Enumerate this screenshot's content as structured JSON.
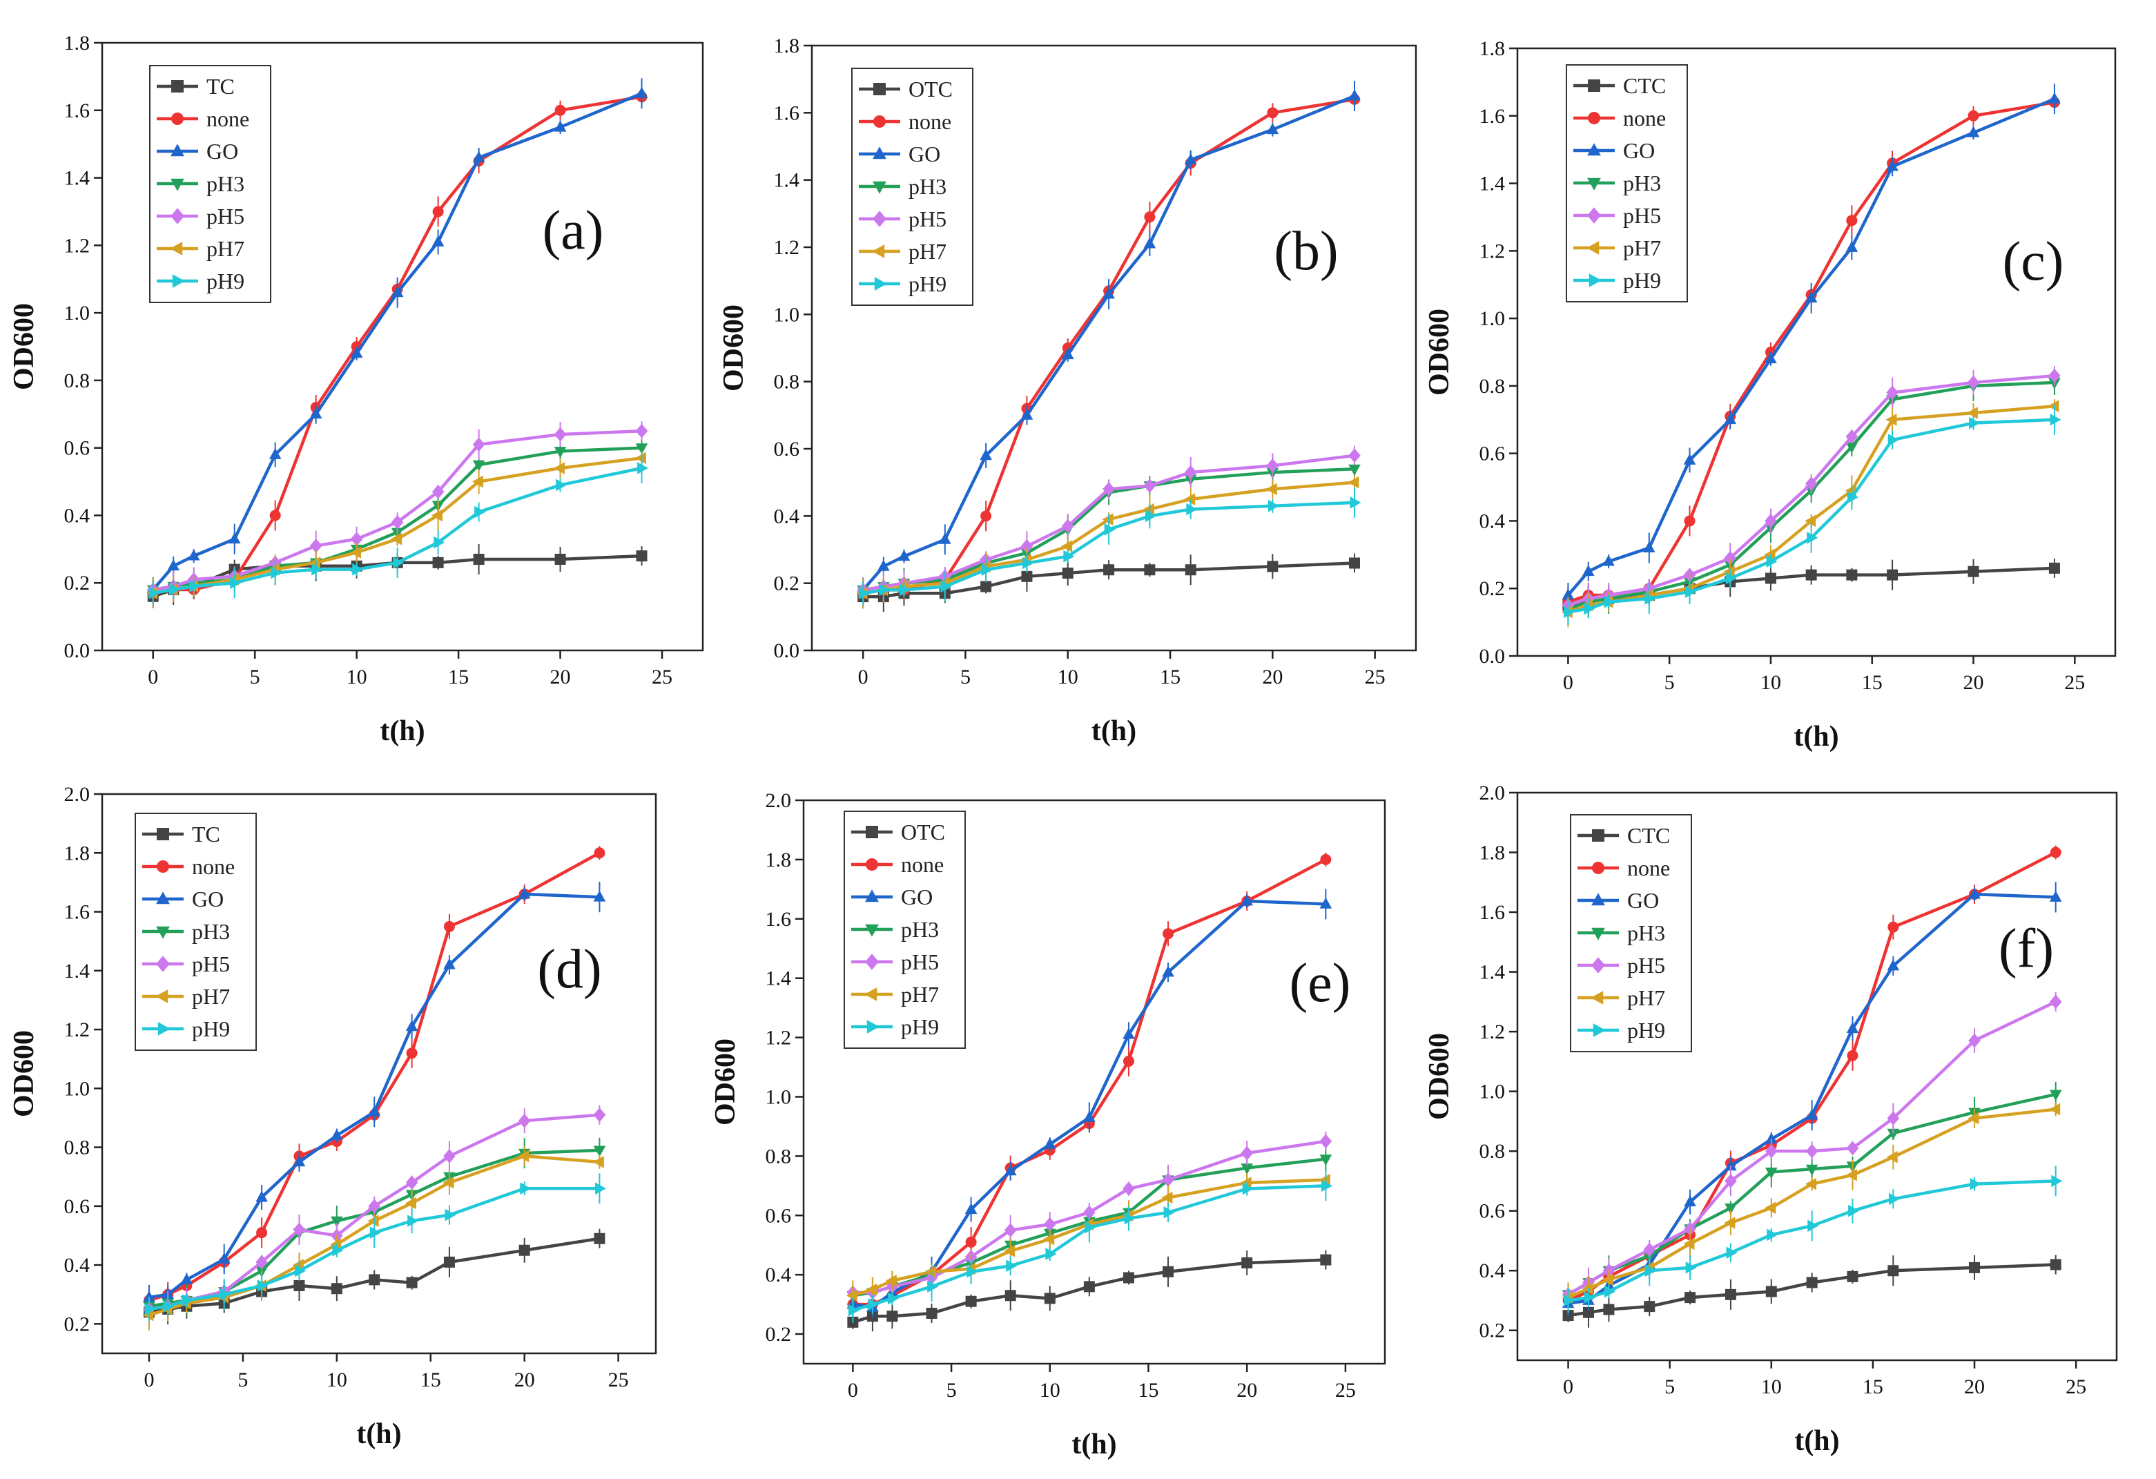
{
  "figure": {
    "markers": {
      "TC": "square",
      "OTC": "square",
      "CTC": "square",
      "none": "circle",
      "GO": "triangle-up",
      "pH3": "triangle-down",
      "pH5": "diamond",
      "pH7": "triangle-left",
      "pH9": "triangle-right"
    }
  },
  "chart_data": [
    {
      "type": "line",
      "panel_label": "(a)",
      "xlabel": "t(h)",
      "ylabel": "OD600",
      "xlim": [
        -2.5,
        27
      ],
      "ylim": [
        0,
        1.8
      ],
      "xticks": [
        0,
        5,
        10,
        15,
        20,
        25
      ],
      "yticks": [
        0.0,
        0.2,
        0.4,
        0.6,
        0.8,
        1.0,
        1.2,
        1.4,
        1.6,
        1.8
      ],
      "ytick_labels": [
        "0.0",
        "0.2",
        "0.4",
        "0.6",
        "0.8",
        "1.0",
        "1.2",
        "1.4",
        "1.6",
        "1.8"
      ],
      "legend_position": "top-left",
      "x": [
        0,
        1,
        2,
        4,
        6,
        8,
        10,
        12,
        14,
        16,
        20,
        24
      ],
      "series": [
        {
          "name": "TC",
          "color": "#444444",
          "values": [
            0.16,
            0.18,
            0.19,
            0.24,
            0.25,
            0.25,
            0.25,
            0.26,
            0.26,
            0.27,
            0.27,
            0.28
          ]
        },
        {
          "name": "none",
          "color": "#ee3333",
          "values": [
            0.17,
            0.18,
            0.18,
            0.21,
            0.4,
            0.72,
            0.9,
            1.07,
            1.3,
            1.45,
            1.6,
            1.64
          ]
        },
        {
          "name": "GO",
          "color": "#1f66cc",
          "values": [
            0.18,
            0.25,
            0.28,
            0.33,
            0.58,
            0.7,
            0.88,
            1.06,
            1.21,
            1.46,
            1.55,
            1.65
          ]
        },
        {
          "name": "pH3",
          "color": "#22a05a",
          "values": [
            0.18,
            0.19,
            0.2,
            0.21,
            0.25,
            0.26,
            0.3,
            0.35,
            0.43,
            0.55,
            0.59,
            0.6
          ]
        },
        {
          "name": "pH5",
          "color": "#cc77ee",
          "values": [
            0.18,
            0.19,
            0.21,
            0.22,
            0.26,
            0.31,
            0.33,
            0.38,
            0.47,
            0.61,
            0.64,
            0.65
          ]
        },
        {
          "name": "pH7",
          "color": "#d6a020",
          "values": [
            0.17,
            0.18,
            0.19,
            0.21,
            0.24,
            0.26,
            0.29,
            0.33,
            0.4,
            0.5,
            0.54,
            0.57
          ]
        },
        {
          "name": "pH9",
          "color": "#20c8d8",
          "values": [
            0.17,
            0.18,
            0.19,
            0.2,
            0.23,
            0.24,
            0.24,
            0.26,
            0.32,
            0.41,
            0.49,
            0.54
          ]
        }
      ]
    },
    {
      "type": "line",
      "panel_label": "(b)",
      "xlabel": "t(h)",
      "ylabel": "OD600",
      "xlim": [
        -2.5,
        27
      ],
      "ylim": [
        0,
        1.8
      ],
      "xticks": [
        0,
        5,
        10,
        15,
        20,
        25
      ],
      "yticks": [
        0.0,
        0.2,
        0.4,
        0.6,
        0.8,
        1.0,
        1.2,
        1.4,
        1.6,
        1.8
      ],
      "ytick_labels": [
        "0.0",
        "0.2",
        "0.4",
        "0.6",
        "0.8",
        "1.0",
        "1.2",
        "1.4",
        "1.6",
        "1.8"
      ],
      "legend_position": "top-left",
      "x": [
        0,
        1,
        2,
        4,
        6,
        8,
        10,
        12,
        14,
        16,
        20,
        24
      ],
      "series": [
        {
          "name": "OTC",
          "color": "#444444",
          "values": [
            0.16,
            0.16,
            0.17,
            0.17,
            0.19,
            0.22,
            0.23,
            0.24,
            0.24,
            0.24,
            0.25,
            0.26
          ]
        },
        {
          "name": "none",
          "color": "#ee3333",
          "values": [
            0.17,
            0.18,
            0.18,
            0.21,
            0.4,
            0.72,
            0.9,
            1.07,
            1.29,
            1.45,
            1.6,
            1.64
          ]
        },
        {
          "name": "GO",
          "color": "#1f66cc",
          "values": [
            0.18,
            0.25,
            0.28,
            0.33,
            0.58,
            0.7,
            0.88,
            1.06,
            1.21,
            1.46,
            1.55,
            1.65
          ]
        },
        {
          "name": "pH3",
          "color": "#22a05a",
          "values": [
            0.18,
            0.19,
            0.2,
            0.21,
            0.26,
            0.29,
            0.36,
            0.47,
            0.49,
            0.51,
            0.53,
            0.54
          ]
        },
        {
          "name": "pH5",
          "color": "#cc77ee",
          "values": [
            0.18,
            0.19,
            0.2,
            0.22,
            0.27,
            0.31,
            0.37,
            0.48,
            0.49,
            0.53,
            0.55,
            0.58
          ]
        },
        {
          "name": "pH7",
          "color": "#d6a020",
          "values": [
            0.17,
            0.18,
            0.19,
            0.2,
            0.25,
            0.27,
            0.31,
            0.39,
            0.42,
            0.45,
            0.48,
            0.5
          ]
        },
        {
          "name": "pH9",
          "color": "#20c8d8",
          "values": [
            0.17,
            0.18,
            0.18,
            0.19,
            0.24,
            0.26,
            0.28,
            0.36,
            0.4,
            0.42,
            0.43,
            0.44
          ]
        }
      ]
    },
    {
      "type": "line",
      "panel_label": "(c)",
      "xlabel": "t(h)",
      "ylabel": "OD600",
      "xlim": [
        -2.5,
        27
      ],
      "ylim": [
        0,
        1.8
      ],
      "xticks": [
        0,
        5,
        10,
        15,
        20,
        25
      ],
      "yticks": [
        0.0,
        0.2,
        0.4,
        0.6,
        0.8,
        1.0,
        1.2,
        1.4,
        1.6,
        1.8
      ],
      "ytick_labels": [
        "0.0",
        "0.2",
        "0.4",
        "0.6",
        "0.8",
        "1.0",
        "1.2",
        "1.4",
        "1.6",
        "1.8"
      ],
      "legend_position": "top-left",
      "x": [
        0,
        1,
        2,
        4,
        6,
        8,
        10,
        12,
        14,
        16,
        20,
        24
      ],
      "series": [
        {
          "name": "CTC",
          "color": "#444444",
          "values": [
            0.15,
            0.16,
            0.17,
            0.18,
            0.2,
            0.22,
            0.23,
            0.24,
            0.24,
            0.24,
            0.25,
            0.26
          ]
        },
        {
          "name": "none",
          "color": "#ee3333",
          "values": [
            0.16,
            0.18,
            0.18,
            0.2,
            0.4,
            0.71,
            0.9,
            1.07,
            1.29,
            1.46,
            1.6,
            1.64
          ]
        },
        {
          "name": "GO",
          "color": "#1f66cc",
          "values": [
            0.18,
            0.25,
            0.28,
            0.32,
            0.58,
            0.7,
            0.88,
            1.06,
            1.21,
            1.45,
            1.55,
            1.65
          ]
        },
        {
          "name": "pH3",
          "color": "#22a05a",
          "values": [
            0.14,
            0.16,
            0.17,
            0.19,
            0.22,
            0.27,
            0.38,
            0.49,
            0.62,
            0.76,
            0.8,
            0.81
          ]
        },
        {
          "name": "pH5",
          "color": "#cc77ee",
          "values": [
            0.15,
            0.17,
            0.18,
            0.2,
            0.24,
            0.29,
            0.4,
            0.51,
            0.65,
            0.78,
            0.81,
            0.83
          ]
        },
        {
          "name": "pH7",
          "color": "#d6a020",
          "values": [
            0.13,
            0.15,
            0.16,
            0.18,
            0.2,
            0.25,
            0.3,
            0.4,
            0.49,
            0.7,
            0.72,
            0.74
          ]
        },
        {
          "name": "pH9",
          "color": "#20c8d8",
          "values": [
            0.13,
            0.14,
            0.16,
            0.17,
            0.19,
            0.23,
            0.28,
            0.35,
            0.47,
            0.64,
            0.69,
            0.7
          ]
        }
      ]
    },
    {
      "type": "line",
      "panel_label": "(d)",
      "xlabel": "t(h)",
      "ylabel": "OD600",
      "xlim": [
        -2.5,
        27
      ],
      "ylim": [
        0.1,
        2.0
      ],
      "xticks": [
        0,
        5,
        10,
        15,
        20,
        25
      ],
      "yticks": [
        0.2,
        0.4,
        0.6,
        0.8,
        1.0,
        1.2,
        1.4,
        1.6,
        1.8,
        2.0
      ],
      "ytick_labels": [
        "0.2",
        "0.4",
        "0.6",
        "0.8",
        "1.0",
        "1.2",
        "1.4",
        "1.6",
        "1.8",
        "2.0"
      ],
      "legend_position": "top-left",
      "x": [
        0,
        1,
        2,
        4,
        6,
        8,
        10,
        12,
        14,
        16,
        20,
        24
      ],
      "series": [
        {
          "name": "TC",
          "color": "#444444",
          "values": [
            0.24,
            0.25,
            0.26,
            0.27,
            0.31,
            0.33,
            0.32,
            0.35,
            0.34,
            0.41,
            0.45,
            0.49
          ]
        },
        {
          "name": "none",
          "color": "#ee3333",
          "values": [
            0.28,
            0.3,
            0.33,
            0.41,
            0.51,
            0.77,
            0.82,
            0.91,
            1.12,
            1.55,
            1.66,
            1.8
          ]
        },
        {
          "name": "GO",
          "color": "#1f66cc",
          "values": [
            0.29,
            0.3,
            0.35,
            0.42,
            0.63,
            0.75,
            0.84,
            0.92,
            1.21,
            1.42,
            1.66,
            1.65
          ]
        },
        {
          "name": "pH3",
          "color": "#22a05a",
          "values": [
            0.26,
            0.27,
            0.28,
            0.31,
            0.38,
            0.51,
            0.55,
            0.58,
            0.64,
            0.7,
            0.78,
            0.79
          ]
        },
        {
          "name": "pH5",
          "color": "#cc77ee",
          "values": [
            0.25,
            0.26,
            0.28,
            0.31,
            0.41,
            0.52,
            0.5,
            0.6,
            0.68,
            0.77,
            0.89,
            0.91
          ]
        },
        {
          "name": "pH7",
          "color": "#d6a020",
          "values": [
            0.23,
            0.25,
            0.27,
            0.29,
            0.33,
            0.4,
            0.47,
            0.55,
            0.61,
            0.68,
            0.77,
            0.75
          ]
        },
        {
          "name": "pH9",
          "color": "#20c8d8",
          "values": [
            0.25,
            0.26,
            0.28,
            0.3,
            0.33,
            0.38,
            0.45,
            0.51,
            0.55,
            0.57,
            0.66,
            0.66
          ]
        }
      ]
    },
    {
      "type": "line",
      "panel_label": "(e)",
      "xlabel": "t(h)",
      "ylabel": "OD600",
      "xlim": [
        -2.5,
        27
      ],
      "ylim": [
        0.1,
        2.0
      ],
      "xticks": [
        0,
        5,
        10,
        15,
        20,
        25
      ],
      "yticks": [
        0.2,
        0.4,
        0.6,
        0.8,
        1.0,
        1.2,
        1.4,
        1.6,
        1.8,
        2.0
      ],
      "ytick_labels": [
        "0.2",
        "0.4",
        "0.6",
        "0.8",
        "1.0",
        "1.2",
        "1.4",
        "1.6",
        "1.8",
        "2.0"
      ],
      "legend_position": "top-left",
      "x": [
        0,
        1,
        2,
        4,
        6,
        8,
        10,
        12,
        14,
        16,
        20,
        24
      ],
      "series": [
        {
          "name": "OTC",
          "color": "#444444",
          "values": [
            0.24,
            0.26,
            0.26,
            0.27,
            0.31,
            0.33,
            0.32,
            0.36,
            0.39,
            0.41,
            0.44,
            0.45
          ]
        },
        {
          "name": "none",
          "color": "#ee3333",
          "values": [
            0.3,
            0.3,
            0.33,
            0.4,
            0.51,
            0.76,
            0.82,
            0.91,
            1.12,
            1.55,
            1.66,
            1.8
          ]
        },
        {
          "name": "GO",
          "color": "#1f66cc",
          "values": [
            0.3,
            0.29,
            0.34,
            0.41,
            0.62,
            0.75,
            0.84,
            0.93,
            1.21,
            1.42,
            1.66,
            1.65
          ]
        },
        {
          "name": "pH3",
          "color": "#22a05a",
          "values": [
            0.33,
            0.34,
            0.36,
            0.4,
            0.44,
            0.5,
            0.54,
            0.58,
            0.61,
            0.72,
            0.76,
            0.79
          ]
        },
        {
          "name": "pH5",
          "color": "#cc77ee",
          "values": [
            0.34,
            0.34,
            0.36,
            0.39,
            0.46,
            0.55,
            0.57,
            0.61,
            0.69,
            0.72,
            0.81,
            0.85
          ]
        },
        {
          "name": "pH7",
          "color": "#d6a020",
          "values": [
            0.33,
            0.35,
            0.38,
            0.41,
            0.42,
            0.48,
            0.52,
            0.57,
            0.6,
            0.66,
            0.71,
            0.72
          ]
        },
        {
          "name": "pH9",
          "color": "#20c8d8",
          "values": [
            0.28,
            0.3,
            0.32,
            0.36,
            0.41,
            0.43,
            0.47,
            0.56,
            0.59,
            0.61,
            0.69,
            0.7
          ]
        }
      ]
    },
    {
      "type": "line",
      "panel_label": "(f)",
      "xlabel": "t(h)",
      "ylabel": "OD600",
      "xlim": [
        -2.5,
        27
      ],
      "ylim": [
        0.1,
        2.0
      ],
      "xticks": [
        0,
        5,
        10,
        15,
        20,
        25
      ],
      "yticks": [
        0.2,
        0.4,
        0.6,
        0.8,
        1.0,
        1.2,
        1.4,
        1.6,
        1.8,
        2.0
      ],
      "ytick_labels": [
        "0.2",
        "0.4",
        "0.6",
        "0.8",
        "1.0",
        "1.2",
        "1.4",
        "1.6",
        "1.8",
        "2.0"
      ],
      "legend_position": "top-left",
      "x": [
        0,
        1,
        2,
        4,
        6,
        8,
        10,
        12,
        14,
        16,
        20,
        24
      ],
      "series": [
        {
          "name": "CTC",
          "color": "#444444",
          "values": [
            0.25,
            0.26,
            0.27,
            0.28,
            0.31,
            0.32,
            0.33,
            0.36,
            0.38,
            0.4,
            0.41,
            0.42
          ]
        },
        {
          "name": "none",
          "color": "#ee3333",
          "values": [
            0.3,
            0.33,
            0.38,
            0.45,
            0.52,
            0.76,
            0.82,
            0.91,
            1.12,
            1.55,
            1.66,
            1.8
          ]
        },
        {
          "name": "GO",
          "color": "#1f66cc",
          "values": [
            0.29,
            0.3,
            0.35,
            0.42,
            0.63,
            0.75,
            0.84,
            0.92,
            1.21,
            1.42,
            1.66,
            1.65
          ]
        },
        {
          "name": "pH3",
          "color": "#22a05a",
          "values": [
            0.32,
            0.36,
            0.4,
            0.45,
            0.54,
            0.61,
            0.73,
            0.74,
            0.75,
            0.86,
            0.93,
            0.99
          ]
        },
        {
          "name": "pH5",
          "color": "#cc77ee",
          "values": [
            0.32,
            0.36,
            0.4,
            0.47,
            0.54,
            0.7,
            0.8,
            0.8,
            0.81,
            0.91,
            1.17,
            1.3
          ]
        },
        {
          "name": "pH7",
          "color": "#d6a020",
          "values": [
            0.31,
            0.34,
            0.37,
            0.41,
            0.49,
            0.56,
            0.61,
            0.69,
            0.72,
            0.78,
            0.91,
            0.94
          ]
        },
        {
          "name": "pH9",
          "color": "#20c8d8",
          "values": [
            0.3,
            0.31,
            0.33,
            0.4,
            0.41,
            0.46,
            0.52,
            0.55,
            0.6,
            0.64,
            0.69,
            0.7
          ]
        }
      ]
    }
  ]
}
